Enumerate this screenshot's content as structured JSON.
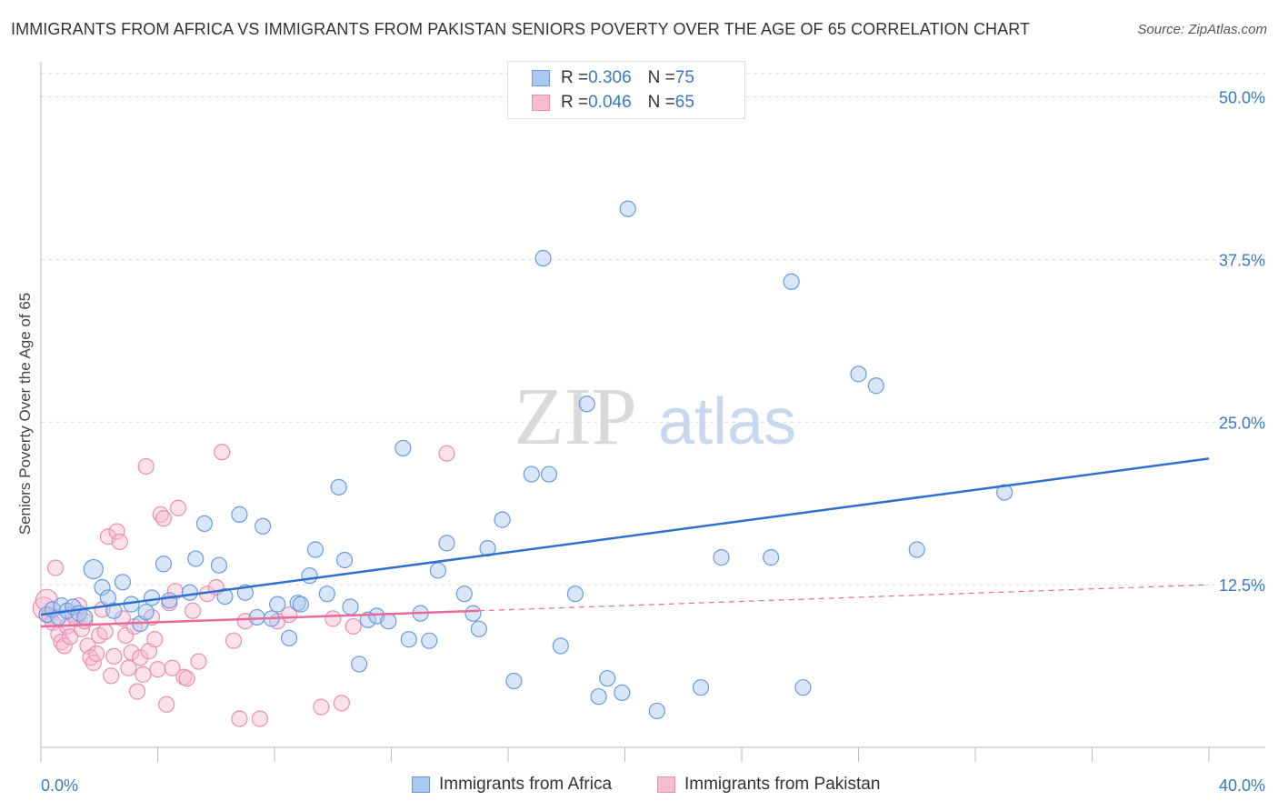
{
  "title": "IMMIGRANTS FROM AFRICA VS IMMIGRANTS FROM PAKISTAN SENIORS POVERTY OVER THE AGE OF 65 CORRELATION CHART",
  "source": "Source: ZipAtlas.com",
  "watermark": {
    "zip": "ZIP",
    "atlas": "atlas"
  },
  "legend": {
    "africa": {
      "r_label": "R = ",
      "r_value": "0.306",
      "n_label": "N = ",
      "n_value": "75"
    },
    "pakistan": {
      "r_label": "R = ",
      "r_value": "0.046",
      "n_label": "N = ",
      "n_value": "65"
    }
  },
  "colors": {
    "africa_fill": "#aac8f0",
    "africa_stroke": "#6a9be0",
    "africa_line": "#2f6fd0",
    "pakistan_fill": "#f6bcd0",
    "pakistan_stroke": "#ea8fb0",
    "pakistan_line": "#e86a98",
    "tick_label": "#3a78c9",
    "grid": "#dddddd"
  },
  "chart_data": {
    "type": "scatter",
    "title": "IMMIGRANTS FROM AFRICA VS IMMIGRANTS FROM PAKISTAN SENIORS POVERTY OVER THE AGE OF 65 CORRELATION CHART",
    "xlabel": "",
    "ylabel": "Seniors Poverty Over the Age of 65",
    "xlim": [
      0,
      40
    ],
    "ylim": [
      0,
      52
    ],
    "x_tick_labels": [
      {
        "value": 0,
        "label": "0.0%"
      },
      {
        "value": 40,
        "label": "40.0%"
      }
    ],
    "y_tick_labels": [
      {
        "value": 12.5,
        "label": "12.5%"
      },
      {
        "value": 25.0,
        "label": "25.0%"
      },
      {
        "value": 37.5,
        "label": "37.5%"
      },
      {
        "value": 50.0,
        "label": "50.0%"
      }
    ],
    "grid": true,
    "legend_position": "top-center",
    "series": [
      {
        "name": "Immigrants from Africa",
        "R": 0.306,
        "N": 75,
        "trendline": {
          "x": [
            0,
            40
          ],
          "y": [
            10.2,
            22.2
          ]
        },
        "points": [
          [
            0.2,
            10.2
          ],
          [
            0.4,
            10.6
          ],
          [
            0.6,
            10.0
          ],
          [
            0.7,
            10.9
          ],
          [
            0.9,
            10.5
          ],
          [
            1.1,
            10.8
          ],
          [
            1.3,
            10.3
          ],
          [
            1.5,
            10.0
          ],
          [
            1.8,
            13.7
          ],
          [
            2.1,
            12.3
          ],
          [
            2.3,
            11.5
          ],
          [
            2.5,
            10.5
          ],
          [
            2.8,
            12.7
          ],
          [
            3.1,
            11.0
          ],
          [
            3.4,
            9.5
          ],
          [
            3.6,
            10.4
          ],
          [
            3.8,
            11.5
          ],
          [
            4.2,
            14.1
          ],
          [
            4.4,
            11.3
          ],
          [
            5.1,
            11.9
          ],
          [
            5.3,
            14.5
          ],
          [
            5.6,
            17.2
          ],
          [
            6.1,
            14.0
          ],
          [
            6.3,
            11.6
          ],
          [
            6.8,
            17.9
          ],
          [
            7.0,
            11.9
          ],
          [
            7.4,
            10.0
          ],
          [
            7.6,
            17.0
          ],
          [
            7.9,
            9.9
          ],
          [
            8.1,
            11.0
          ],
          [
            8.5,
            8.4
          ],
          [
            8.8,
            11.1
          ],
          [
            8.9,
            11.0
          ],
          [
            9.2,
            13.2
          ],
          [
            9.4,
            15.2
          ],
          [
            9.8,
            11.8
          ],
          [
            10.2,
            20.0
          ],
          [
            10.4,
            14.4
          ],
          [
            10.6,
            10.8
          ],
          [
            10.9,
            6.4
          ],
          [
            11.2,
            9.8
          ],
          [
            11.5,
            10.1
          ],
          [
            11.9,
            9.7
          ],
          [
            12.4,
            23.0
          ],
          [
            12.6,
            8.3
          ],
          [
            13.0,
            10.3
          ],
          [
            13.3,
            8.2
          ],
          [
            13.6,
            13.6
          ],
          [
            13.9,
            15.7
          ],
          [
            14.5,
            11.8
          ],
          [
            14.8,
            10.3
          ],
          [
            15.0,
            9.1
          ],
          [
            15.3,
            15.3
          ],
          [
            15.8,
            17.5
          ],
          [
            16.2,
            5.1
          ],
          [
            16.8,
            21.0
          ],
          [
            17.2,
            37.6
          ],
          [
            17.4,
            21.0
          ],
          [
            17.8,
            7.8
          ],
          [
            18.3,
            11.8
          ],
          [
            18.7,
            26.4
          ],
          [
            19.1,
            3.9
          ],
          [
            19.4,
            5.3
          ],
          [
            19.9,
            4.2
          ],
          [
            20.1,
            41.4
          ],
          [
            21.1,
            2.8
          ],
          [
            22.6,
            4.6
          ],
          [
            23.3,
            14.6
          ],
          [
            25.0,
            14.6
          ],
          [
            25.7,
            35.8
          ],
          [
            26.1,
            4.6
          ],
          [
            28.0,
            28.7
          ],
          [
            28.6,
            27.8
          ],
          [
            30.0,
            15.2
          ],
          [
            33.0,
            19.6
          ]
        ]
      },
      {
        "name": "Immigrants from Pakistan",
        "R": 0.046,
        "N": 65,
        "trendline": {
          "x": [
            0,
            15
          ],
          "y": [
            9.3,
            10.5
          ],
          "dashed_extension": {
            "x": [
              15,
              40
            ],
            "y": [
              10.5,
              12.5
            ]
          }
        },
        "points": [
          [
            0.1,
            10.7
          ],
          [
            0.2,
            11.3
          ],
          [
            0.3,
            10.1
          ],
          [
            0.4,
            9.6
          ],
          [
            0.5,
            13.8
          ],
          [
            0.6,
            8.7
          ],
          [
            0.7,
            8.1
          ],
          [
            0.8,
            7.8
          ],
          [
            0.9,
            9.3
          ],
          [
            1.0,
            8.5
          ],
          [
            1.1,
            10.2
          ],
          [
            1.2,
            9.9
          ],
          [
            1.3,
            10.9
          ],
          [
            1.4,
            9.1
          ],
          [
            1.5,
            9.7
          ],
          [
            1.6,
            7.8
          ],
          [
            1.7,
            6.9
          ],
          [
            1.8,
            6.5
          ],
          [
            1.9,
            7.2
          ],
          [
            2.0,
            8.6
          ],
          [
            2.1,
            10.6
          ],
          [
            2.2,
            8.9
          ],
          [
            2.3,
            16.2
          ],
          [
            2.4,
            5.5
          ],
          [
            2.5,
            7.0
          ],
          [
            2.6,
            16.6
          ],
          [
            2.7,
            15.8
          ],
          [
            2.8,
            9.9
          ],
          [
            2.9,
            8.6
          ],
          [
            3.0,
            6.1
          ],
          [
            3.1,
            7.3
          ],
          [
            3.2,
            9.3
          ],
          [
            3.3,
            4.3
          ],
          [
            3.4,
            6.9
          ],
          [
            3.5,
            5.6
          ],
          [
            3.6,
            21.6
          ],
          [
            3.7,
            7.4
          ],
          [
            3.8,
            10.0
          ],
          [
            3.9,
            8.3
          ],
          [
            4.0,
            6.0
          ],
          [
            4.1,
            17.9
          ],
          [
            4.2,
            17.6
          ],
          [
            4.3,
            3.3
          ],
          [
            4.4,
            11.1
          ],
          [
            4.5,
            6.1
          ],
          [
            4.6,
            12.0
          ],
          [
            4.7,
            18.4
          ],
          [
            4.9,
            5.4
          ],
          [
            5.0,
            5.3
          ],
          [
            5.2,
            10.5
          ],
          [
            5.4,
            6.6
          ],
          [
            5.7,
            11.8
          ],
          [
            6.0,
            12.3
          ],
          [
            6.2,
            22.7
          ],
          [
            6.6,
            8.2
          ],
          [
            6.8,
            2.2
          ],
          [
            7.0,
            9.7
          ],
          [
            7.5,
            2.2
          ],
          [
            8.1,
            9.7
          ],
          [
            8.5,
            10.2
          ],
          [
            9.6,
            3.1
          ],
          [
            10.0,
            9.9
          ],
          [
            10.3,
            3.4
          ],
          [
            10.7,
            9.3
          ],
          [
            13.9,
            22.6
          ]
        ]
      }
    ]
  },
  "bottom_legend": {
    "africa": "Immigrants from Africa",
    "pakistan": "Immigrants from Pakistan"
  }
}
